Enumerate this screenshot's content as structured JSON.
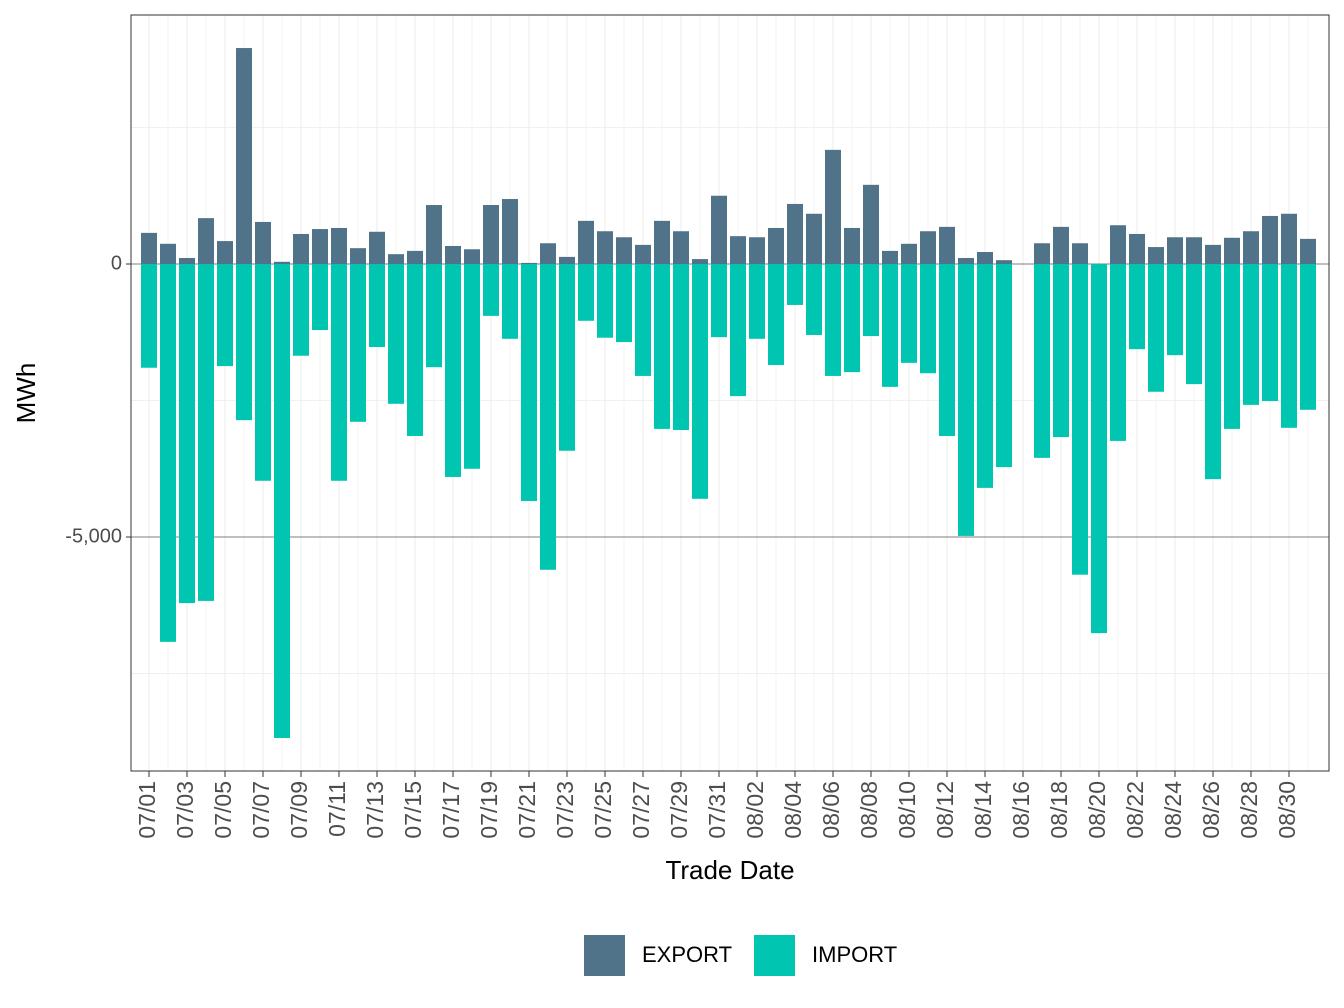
{
  "chart_data": {
    "type": "bar",
    "x_label": "Trade Date",
    "y_label": "MWh",
    "categories": [
      "07/01",
      null,
      "07/03",
      null,
      "07/05",
      null,
      "07/07",
      null,
      "07/09",
      null,
      "07/11",
      null,
      "07/13",
      null,
      "07/15",
      null,
      "07/17",
      null,
      "07/19",
      null,
      "07/21",
      null,
      "07/23",
      null,
      "07/25",
      null,
      "07/27",
      null,
      "07/29",
      null,
      "07/31",
      null,
      "08/02",
      null,
      "08/04",
      null,
      "08/06",
      null,
      "08/08",
      null,
      "08/10",
      null,
      "08/12",
      null,
      "08/14",
      null,
      "08/16",
      null,
      "08/18",
      null,
      "08/20",
      null,
      "08/22",
      null,
      "08/24",
      null,
      "08/26",
      null,
      "08/28",
      null,
      "08/30",
      null
    ],
    "series": [
      {
        "name": "EXPORT",
        "color": "#51738a",
        "values": [
          570,
          370,
          110,
          840,
          420,
          3955,
          770,
          40,
          550,
          640,
          660,
          290,
          590,
          180,
          240,
          1080,
          330,
          270,
          1080,
          1190,
          20,
          380,
          130,
          790,
          600,
          490,
          350,
          790,
          600,
          90,
          1250,
          510,
          490,
          660,
          1100,
          920,
          2090,
          660,
          1450,
          240,
          370,
          600,
          680,
          110,
          220,
          70,
          null,
          380,
          680,
          380,
          0,
          710,
          550,
          310,
          490,
          490,
          350,
          480,
          600,
          880,
          920,
          460
        ]
      },
      {
        "name": "IMPORT",
        "color": "#00c5b0",
        "values": [
          -1900,
          -6920,
          -6210,
          -6170,
          -1870,
          -2860,
          -3970,
          -8680,
          -1680,
          -1210,
          -3970,
          -2890,
          -1520,
          -2560,
          -3150,
          -1890,
          -3900,
          -3750,
          -950,
          -1370,
          -4340,
          -5600,
          -3420,
          -1040,
          -1350,
          -1430,
          -2050,
          -3020,
          -3040,
          -4300,
          -1340,
          -2420,
          -1370,
          -1850,
          -750,
          -1300,
          -2050,
          -1980,
          -1320,
          -2250,
          -1810,
          -2000,
          -3150,
          -4980,
          -4100,
          -3720,
          null,
          -3550,
          -3170,
          -5690,
          -6760,
          -3240,
          -1560,
          -2340,
          -1670,
          -2200,
          -3940,
          -3020,
          -2580,
          -2510,
          -3000,
          -2670
        ]
      }
    ],
    "ylim": [
      -9285,
      4560
    ],
    "yticks": [
      0,
      {
        "value": -5000,
        "label": "-5,000"
      }
    ],
    "grid": true,
    "legend": "bottom"
  }
}
